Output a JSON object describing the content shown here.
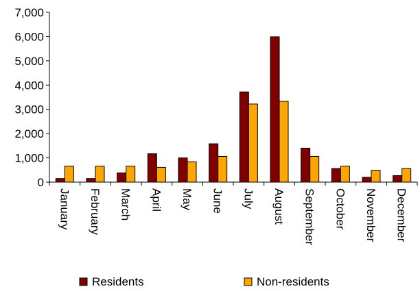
{
  "chart_data": {
    "type": "bar",
    "categories": [
      "January",
      "February",
      "March",
      "April",
      "May",
      "June",
      "July",
      "August",
      "September",
      "October",
      "November",
      "December"
    ],
    "series": [
      {
        "name": "Residents",
        "color": "#800000",
        "values": [
          150,
          150,
          380,
          1170,
          1000,
          1580,
          3720,
          5990,
          1400,
          560,
          200,
          270
        ]
      },
      {
        "name": "Non-residents",
        "color": "#FFA500",
        "values": [
          660,
          660,
          660,
          610,
          840,
          1060,
          3220,
          3330,
          1060,
          660,
          490,
          560
        ]
      }
    ],
    "yticks": [
      "0",
      "1,000",
      "2,000",
      "3,000",
      "4,000",
      "5,000",
      "6,000",
      "7,000"
    ],
    "ylim": [
      0,
      7000
    ],
    "legend_position": "bottom",
    "grid": false
  }
}
